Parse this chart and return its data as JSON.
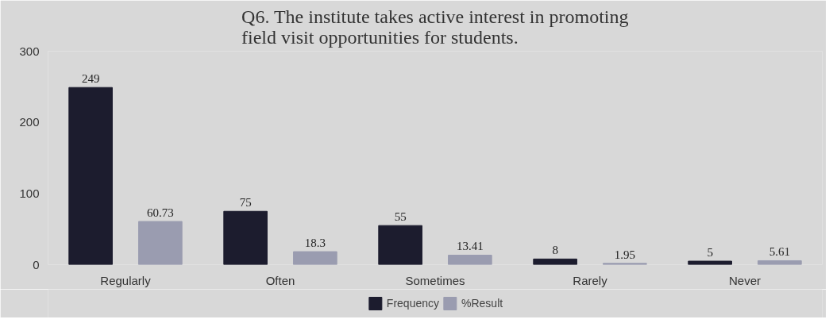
{
  "chart_data": {
    "type": "bar",
    "title": "Q6. The institute takes active interest in promoting\nfield visit opportunities for students.",
    "categories": [
      "Regularly",
      "Often",
      "Sometimes",
      "Rarely",
      "Never"
    ],
    "series": [
      {
        "name": "Frequency",
        "color": "#1c1c2e",
        "values": [
          249,
          75,
          55,
          8,
          5
        ]
      },
      {
        "name": "%Result",
        "color": "#9a9cb0",
        "values": [
          60.73,
          18.3,
          13.41,
          1.95,
          5.61
        ]
      }
    ],
    "ylim": [
      0,
      300
    ],
    "yticks": [
      0,
      100,
      200,
      300
    ],
    "data_labels": true,
    "legend": "bottom",
    "grid": false
  }
}
